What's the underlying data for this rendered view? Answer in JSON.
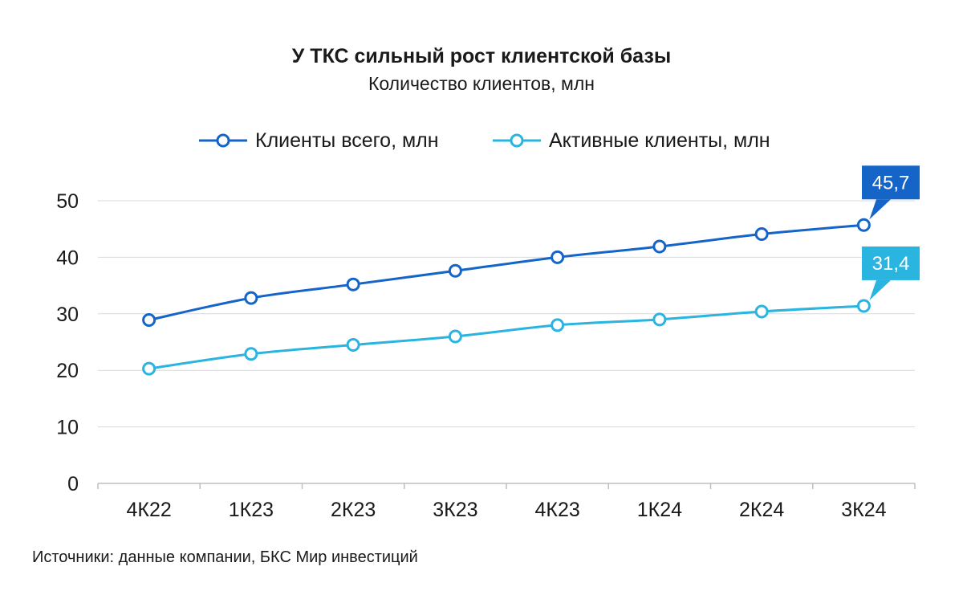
{
  "chart_data": {
    "type": "line",
    "title": "У ТКС сильный рост клиентской базы",
    "subtitle": "Количество клиентов, млн",
    "categories": [
      "4К22",
      "1К23",
      "2К23",
      "3К23",
      "4К23",
      "1К24",
      "2К24",
      "3К24"
    ],
    "series": [
      {
        "name": "Клиенты всего, млн",
        "color": "#1565c8",
        "values": [
          28.9,
          32.8,
          35.2,
          37.6,
          40.0,
          41.9,
          44.1,
          45.7
        ]
      },
      {
        "name": "Активные клиенты, млн",
        "color": "#2ab4e0",
        "values": [
          20.3,
          22.9,
          24.5,
          26.0,
          28.0,
          29.0,
          30.4,
          31.4
        ]
      }
    ],
    "callouts": [
      {
        "series": 0,
        "label": "45,7"
      },
      {
        "series": 1,
        "label": "31,4"
      }
    ],
    "ylim": [
      0,
      50
    ],
    "yticks": [
      "0",
      "10",
      "20",
      "30",
      "40",
      "50"
    ],
    "grid": true,
    "legend_position": "top"
  },
  "footer": {
    "source": "Источники: данные компании, БКС Мир инвестиций"
  }
}
